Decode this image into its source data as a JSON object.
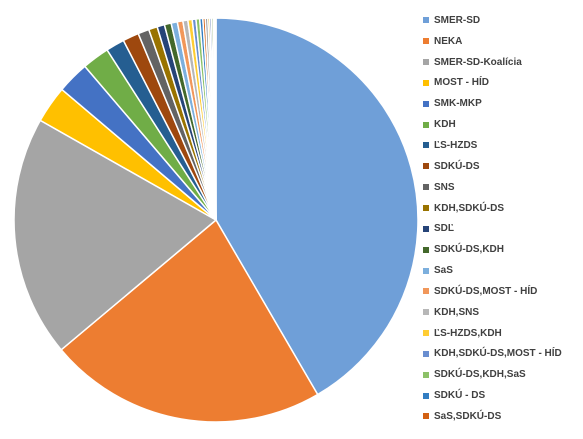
{
  "chart_data": {
    "type": "pie",
    "legend_position": "right",
    "slices": [
      {
        "name": "SMER-SD",
        "value": 42.0,
        "color": "#6f9fd8"
      },
      {
        "name": "NEKA",
        "value": 22.5,
        "color": "#ed7d31"
      },
      {
        "name": "SMER-SD-Koalícia",
        "value": 19.5,
        "color": "#a5a5a5"
      },
      {
        "name": "MOST - HÍD",
        "value": 3.0,
        "color": "#ffc000"
      },
      {
        "name": "SMK-MKP",
        "value": 2.6,
        "color": "#4472c4"
      },
      {
        "name": "KDH",
        "value": 2.2,
        "color": "#70ad47"
      },
      {
        "name": "ĽS-HZDS",
        "value": 1.5,
        "color": "#255e91"
      },
      {
        "name": "SDKÚ-DS",
        "value": 1.3,
        "color": "#9e480e"
      },
      {
        "name": "SNS",
        "value": 0.9,
        "color": "#636363"
      },
      {
        "name": "KDH,SDKÚ-DS",
        "value": 0.7,
        "color": "#997300"
      },
      {
        "name": "SDĽ",
        "value": 0.6,
        "color": "#264478"
      },
      {
        "name": "SDKÚ-DS,KDH",
        "value": 0.55,
        "color": "#43682b"
      },
      {
        "name": "SaS",
        "value": 0.5,
        "color": "#7cafdd"
      },
      {
        "name": "SDKÚ-DS,MOST - HÍD",
        "value": 0.45,
        "color": "#f1975a"
      },
      {
        "name": "KDH,SNS",
        "value": 0.4,
        "color": "#b7b7b7"
      },
      {
        "name": "ĽS-HZDS,KDH",
        "value": 0.35,
        "color": "#ffcd33"
      },
      {
        "name": "KDH,SDKÚ-DS,MOST - HÍD",
        "value": 0.3,
        "color": "#698ed0"
      },
      {
        "name": "SDKÚ-DS,KDH,SaS",
        "value": 0.3,
        "color": "#8cc168"
      },
      {
        "name": "SDKÚ - DS",
        "value": 0.25,
        "color": "#327dc2"
      },
      {
        "name": "SaS,SDKÚ-DS",
        "value": 0.2,
        "color": "#d26012"
      },
      {
        "name": "",
        "value": 0.2,
        "color": "#8f8f8f"
      },
      {
        "name": "",
        "value": 0.15,
        "color": "#cc9a00"
      },
      {
        "name": "",
        "value": 0.15,
        "color": "#335aa1"
      },
      {
        "name": "",
        "value": 0.15,
        "color": "#5a8a39"
      },
      {
        "name": "",
        "value": 0.1,
        "color": "#a3c4e6"
      },
      {
        "name": "",
        "value": 0.1,
        "color": "#f4b183"
      }
    ]
  }
}
